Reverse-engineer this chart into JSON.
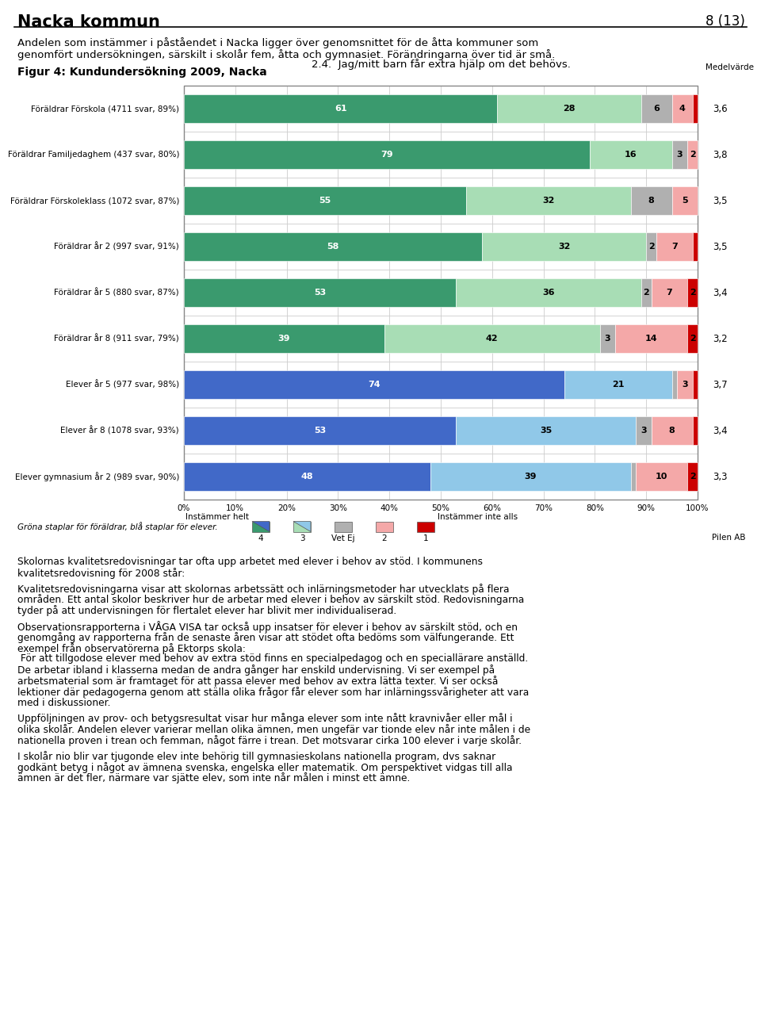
{
  "title_left": "Nacka kommun",
  "title_right": "8 (13)",
  "intro_line1": "Andelen som instämmer i påståendet i Nacka ligger över genomsnittet för de åtta kommuner som",
  "intro_line2": "genomfört undersökningen, särskilt i skolår fem, åtta och gymnasiet. Förändringarna över tid är små.",
  "fig_title": "Figur 4: Kundundersökning 2009, Nacka",
  "chart_title": "2.4.  Jag/mitt barn får extra hjälp om det behövs.",
  "medelvarde_label": "Medelvärde",
  "categories": [
    "Föräldrar Förskola (4711 svar, 89%)",
    "Föräldrar Familjedaghem (437 svar, 80%)",
    "Föräldrar Förskoleklass (1072 svar, 87%)",
    "Föräldrar år 2 (997 svar, 91%)",
    "Föräldrar år 5 (880 svar, 87%)",
    "Föräldrar år 8 (911 svar, 79%)",
    "Elever år 5 (977 svar, 98%)",
    "Elever år 8 (1078 svar, 93%)",
    "Elever gymnasium år 2 (989 svar, 90%)"
  ],
  "data": [
    [
      61,
      28,
      6,
      4,
      1
    ],
    [
      79,
      16,
      3,
      2,
      0
    ],
    [
      55,
      32,
      8,
      5,
      0
    ],
    [
      58,
      32,
      2,
      7,
      1
    ],
    [
      53,
      36,
      2,
      7,
      2
    ],
    [
      39,
      42,
      3,
      14,
      2
    ],
    [
      74,
      21,
      1,
      3,
      1
    ],
    [
      53,
      35,
      3,
      8,
      1
    ],
    [
      48,
      39,
      1,
      10,
      2
    ]
  ],
  "medelvarde": [
    "3,6",
    "3,8",
    "3,5",
    "3,5",
    "3,4",
    "3,2",
    "3,7",
    "3,4",
    "3,3"
  ],
  "is_student": [
    false,
    false,
    false,
    false,
    false,
    false,
    true,
    true,
    true
  ],
  "colors_parent": [
    "#3a9a6e",
    "#a8ddb5",
    "#b0b0b0",
    "#f4a8a8",
    "#cc0000"
  ],
  "colors_student": [
    "#4169c8",
    "#90c8e8",
    "#b0b0b0",
    "#f4a8a8",
    "#cc0000"
  ],
  "legend_note": "Gröna staplar för föräldrar, blå staplar för elever.",
  "legend_items": [
    "4",
    "3",
    "Vet Ej",
    "2",
    "1"
  ],
  "footer": "Pilen AB",
  "body_paragraphs": [
    "Skolornas kvalitetsredovisningar tar ofta upp arbetet med elever i behov av stöd. I kommunens\nkvalitetsredovisning för 2008 står:",
    "Kvalitetsredovisningarna visar att skolornas arbetssätt och inlärningsmetoder har utvecklats på flera\nområden. Ett antal skolor beskriver hur de arbetar med elever i behov av särskilt stöd. Redovisningarna\ntyder på att undervisningen för flertalet elever har blivit mer individualiserad.",
    "Observationsrapporterna i VÅGA VISA tar också upp insatser för elever i behov av särskilt stöd, och en\ngenomgång av rapporterna från de senaste åren visar att stödet ofta bedöms som välfungerande. Ett\nexempel från observatörerna på Ektorps skola:\n För att tillgodose elever med behov av extra stöd finns en specialpedagog och en speciallärare anställd.\nDe arbetar ibland i klasserna medan de andra gånger har enskild undervisning. Vi ser exempel på\narbetsmaterial som är framtaget för att passa elever med behov av extra lätta texter. Vi ser också\nlektioner där pedagogerna genom att ställa olika frågor får elever som har inlärningssvårigheter att vara\nmed i diskussioner.",
    "Uppföljningen av prov- och betygsresultat visar hur många elever som inte nått kravnivåer eller mål i\nolika skolår. Andelen elever varierar mellan olika ämnen, men ungefär var tionde elev når inte målen i de\nnationella proven i trean och femman, något färre i trean. Det motsvarar cirka 100 elever i varje skolår.",
    "I skolår nio blir var tjugonde elev inte behörig till gymnasieskolans nationella program, dvs saknar\ngodkänt betyg i något av ämnena svenska, engelska eller matematik. Om perspektivet vidgas till alla\nämnen är det fler, närmare var sjätte elev, som inte når målen i minst ett ämne."
  ],
  "bg_color": "#ffffff"
}
